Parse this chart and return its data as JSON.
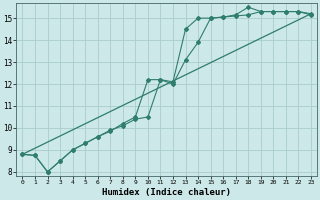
{
  "xlabel": "Humidex (Indice chaleur)",
  "bg_color": "#cce8e8",
  "grid_color": "#aacccc",
  "line_color": "#2e7d6e",
  "xlim": [
    -0.5,
    23.5
  ],
  "ylim": [
    7.8,
    15.7
  ],
  "yticks": [
    8,
    9,
    10,
    11,
    12,
    13,
    14,
    15
  ],
  "xticks": [
    0,
    1,
    2,
    3,
    4,
    5,
    6,
    7,
    8,
    9,
    10,
    11,
    12,
    13,
    14,
    15,
    16,
    17,
    18,
    19,
    20,
    21,
    22,
    23
  ],
  "line1_x": [
    0,
    1,
    2,
    3,
    4,
    5,
    6,
    7,
    8,
    9,
    10,
    11,
    12,
    13,
    14,
    15,
    16,
    17,
    18,
    19,
    20,
    21,
    22,
    23
  ],
  "line1_y": [
    8.8,
    8.75,
    8.0,
    8.5,
    9.0,
    9.3,
    9.6,
    9.9,
    10.1,
    10.4,
    10.5,
    12.2,
    12.0,
    13.1,
    13.9,
    15.0,
    15.05,
    15.1,
    15.15,
    15.3,
    15.3,
    15.3,
    15.3,
    15.2
  ],
  "line2_x": [
    0,
    1,
    2,
    3,
    4,
    5,
    6,
    7,
    8,
    9,
    10,
    11,
    12,
    13,
    14,
    15,
    16,
    17,
    18,
    19,
    20,
    21,
    22,
    23
  ],
  "line2_y": [
    8.8,
    8.75,
    8.0,
    8.5,
    9.0,
    9.3,
    9.6,
    9.85,
    10.2,
    10.5,
    12.2,
    12.2,
    12.1,
    14.5,
    15.0,
    15.0,
    15.05,
    15.15,
    15.5,
    15.3,
    15.3,
    15.3,
    15.3,
    15.15
  ],
  "line3_x": [
    0,
    23
  ],
  "line3_y": [
    8.8,
    15.2
  ]
}
